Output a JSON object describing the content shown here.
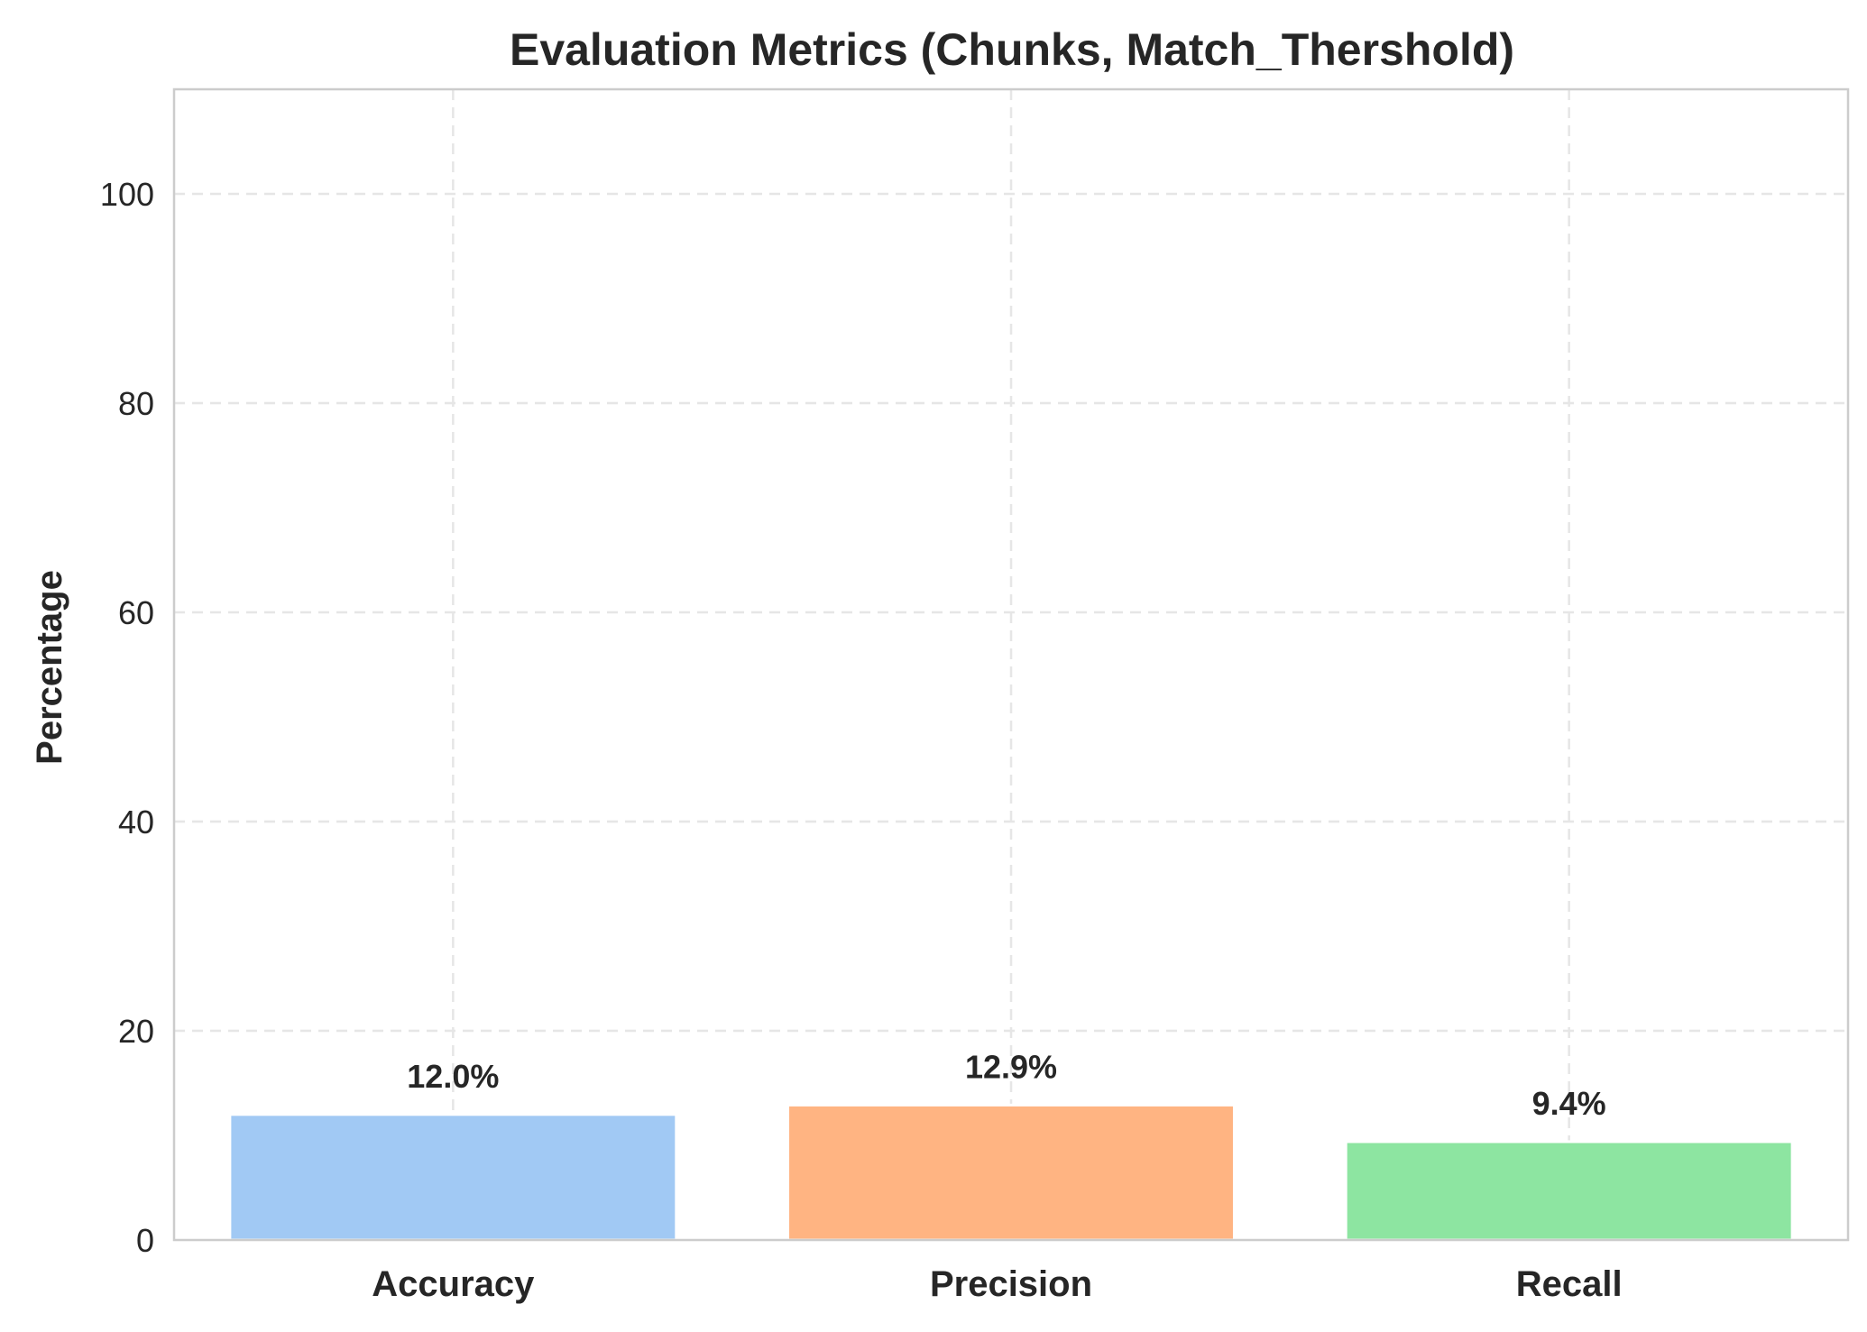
{
  "chart_data": {
    "type": "bar",
    "title": "Evaluation Metrics (Chunks, Match_Thershold)",
    "xlabel": "",
    "ylabel": "Percentage",
    "categories": [
      "Accuracy",
      "Precision",
      "Recall"
    ],
    "values": [
      12.0,
      12.9,
      9.4
    ],
    "data_labels": [
      "12.0%",
      "12.9%",
      "9.4%"
    ],
    "colors": [
      "#a1c9f4",
      "#ffb482",
      "#8de5a1"
    ],
    "ylim": [
      0,
      110
    ],
    "yticks": [
      0,
      20,
      40,
      60,
      80,
      100
    ],
    "grid": true,
    "grid_color": "#e6e6e6",
    "spine_color": "#cccccc",
    "text_color": "#262626"
  }
}
